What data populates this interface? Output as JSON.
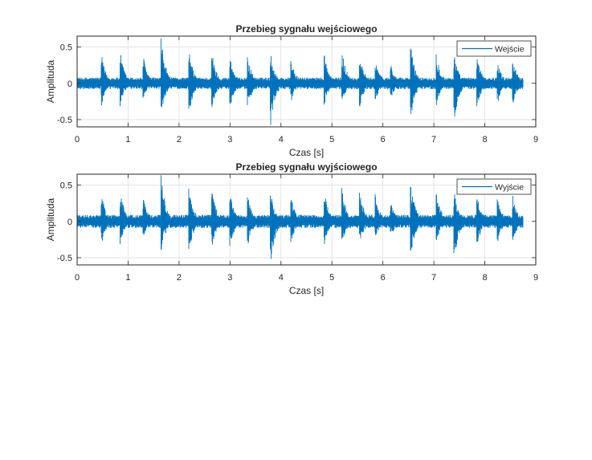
{
  "chart_data": [
    {
      "type": "line",
      "title": "Przebieg sygnału wejściowego",
      "xlabel": "Czas [s]",
      "ylabel": "Amplituda",
      "xlim": [
        0,
        9
      ],
      "ylim": [
        -0.6,
        0.65
      ],
      "xticks": [
        0,
        1,
        2,
        3,
        4,
        5,
        6,
        7,
        8,
        9
      ],
      "yticks": [
        -0.5,
        0,
        0.5
      ],
      "ytick_labels": [
        "-0.5",
        "0",
        "0.5"
      ],
      "grid": true,
      "legend_position": "top-right",
      "color": "#0072BD",
      "series": [
        {
          "name": "Wejście",
          "duration_s": 8.75,
          "envelope_peaks": [
            {
              "t": 0.48,
              "top": 0.4,
              "bottom": -0.32
            },
            {
              "t": 0.85,
              "top": 0.43,
              "bottom": -0.32
            },
            {
              "t": 1.3,
              "top": 0.38,
              "bottom": -0.22
            },
            {
              "t": 1.65,
              "top": 0.64,
              "bottom": -0.45
            },
            {
              "t": 2.2,
              "top": 0.45,
              "bottom": -0.42
            },
            {
              "t": 2.65,
              "top": 0.42,
              "bottom": -0.35
            },
            {
              "t": 3.0,
              "top": 0.4,
              "bottom": -0.35
            },
            {
              "t": 3.35,
              "top": 0.38,
              "bottom": -0.35
            },
            {
              "t": 3.8,
              "top": 0.42,
              "bottom": -0.6
            },
            {
              "t": 4.2,
              "top": 0.35,
              "bottom": -0.3
            },
            {
              "t": 4.85,
              "top": 0.43,
              "bottom": -0.33
            },
            {
              "t": 5.2,
              "top": 0.48,
              "bottom": -0.32
            },
            {
              "t": 5.55,
              "top": 0.4,
              "bottom": -0.33
            },
            {
              "t": 5.85,
              "top": 0.38,
              "bottom": -0.25
            },
            {
              "t": 6.15,
              "top": 0.3,
              "bottom": -0.25
            },
            {
              "t": 6.55,
              "top": 0.53,
              "bottom": -0.5
            },
            {
              "t": 7.05,
              "top": 0.45,
              "bottom": -0.32
            },
            {
              "t": 7.4,
              "top": 0.42,
              "bottom": -0.55
            },
            {
              "t": 7.85,
              "top": 0.38,
              "bottom": -0.35
            },
            {
              "t": 8.25,
              "top": 0.33,
              "bottom": -0.32
            },
            {
              "t": 8.55,
              "top": 0.36,
              "bottom": -0.3
            }
          ],
          "noise_floor": 0.08
        }
      ]
    },
    {
      "type": "line",
      "title": "Przebieg sygnału wyjściowego",
      "xlabel": "Czas [s]",
      "ylabel": "Amplituda",
      "xlim": [
        0,
        9
      ],
      "ylim": [
        -0.6,
        0.65
      ],
      "xticks": [
        0,
        1,
        2,
        3,
        4,
        5,
        6,
        7,
        8,
        9
      ],
      "yticks": [
        -0.5,
        0,
        0.5
      ],
      "ytick_labels": [
        "-0.5",
        "0",
        "0.5"
      ],
      "grid": true,
      "legend_position": "top-right",
      "color": "#0072BD",
      "series": [
        {
          "name": "Wyjście",
          "duration_s": 8.75,
          "envelope_peaks": [
            {
              "t": 0.48,
              "top": 0.4,
              "bottom": -0.32
            },
            {
              "t": 0.85,
              "top": 0.43,
              "bottom": -0.32
            },
            {
              "t": 1.3,
              "top": 0.38,
              "bottom": -0.22
            },
            {
              "t": 1.65,
              "top": 0.64,
              "bottom": -0.45
            },
            {
              "t": 2.2,
              "top": 0.45,
              "bottom": -0.42
            },
            {
              "t": 2.65,
              "top": 0.42,
              "bottom": -0.35
            },
            {
              "t": 3.0,
              "top": 0.4,
              "bottom": -0.35
            },
            {
              "t": 3.35,
              "top": 0.38,
              "bottom": -0.35
            },
            {
              "t": 3.8,
              "top": 0.42,
              "bottom": -0.6
            },
            {
              "t": 4.2,
              "top": 0.35,
              "bottom": -0.3
            },
            {
              "t": 4.85,
              "top": 0.43,
              "bottom": -0.33
            },
            {
              "t": 5.2,
              "top": 0.48,
              "bottom": -0.32
            },
            {
              "t": 5.55,
              "top": 0.4,
              "bottom": -0.33
            },
            {
              "t": 5.85,
              "top": 0.38,
              "bottom": -0.25
            },
            {
              "t": 6.15,
              "top": 0.3,
              "bottom": -0.25
            },
            {
              "t": 6.55,
              "top": 0.53,
              "bottom": -0.5
            },
            {
              "t": 7.05,
              "top": 0.45,
              "bottom": -0.32
            },
            {
              "t": 7.4,
              "top": 0.42,
              "bottom": -0.55
            },
            {
              "t": 7.85,
              "top": 0.38,
              "bottom": -0.35
            },
            {
              "t": 8.25,
              "top": 0.33,
              "bottom": -0.32
            },
            {
              "t": 8.55,
              "top": 0.36,
              "bottom": -0.3
            }
          ],
          "noise_floor": 0.09
        }
      ]
    }
  ]
}
